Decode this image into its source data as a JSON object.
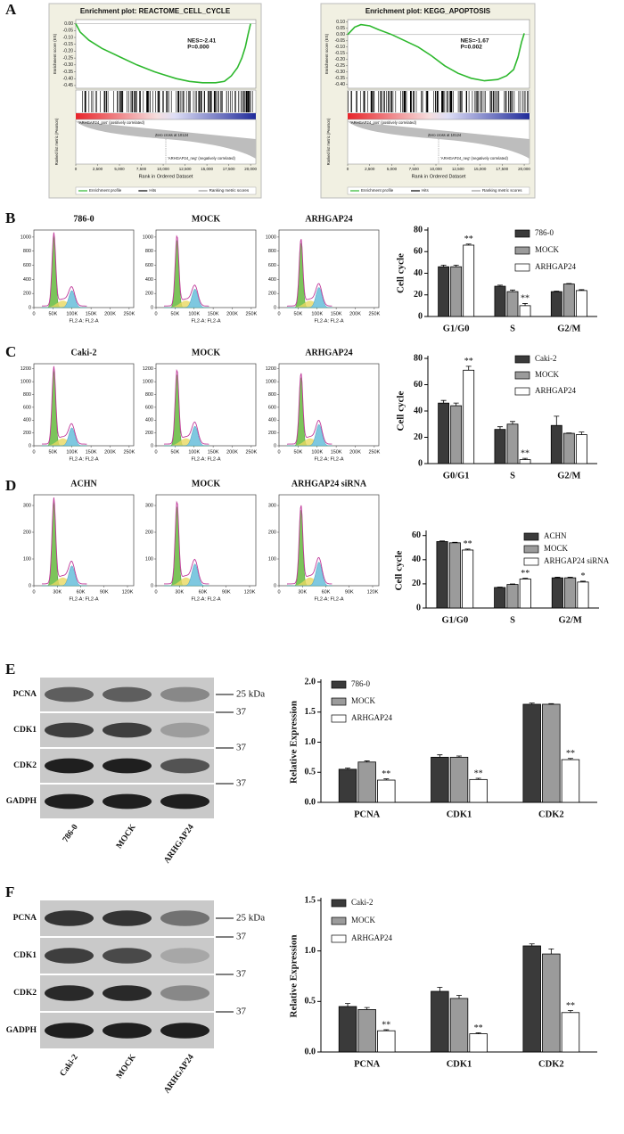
{
  "panels": [
    "A",
    "B",
    "C",
    "D",
    "E",
    "F"
  ],
  "chart_data": [
    {
      "type": "line",
      "title": "Enrichment plot: REACTOME_CELL_CYCLE",
      "annotations": [
        "NES=-2.41",
        "P=0.000"
      ],
      "x": [
        0,
        500,
        1500,
        3000,
        5000,
        7000,
        9000,
        10000,
        11500,
        13000,
        14500,
        16000,
        17000,
        17800,
        18500,
        19000,
        19400,
        19700,
        20000
      ],
      "values": [
        0,
        -0.06,
        -0.12,
        -0.18,
        -0.24,
        -0.3,
        -0.35,
        -0.37,
        -0.4,
        -0.42,
        -0.43,
        -0.43,
        -0.42,
        -0.38,
        -0.32,
        -0.25,
        -0.17,
        -0.08,
        0
      ],
      "color": "#2db82d",
      "xlim": [
        0,
        20600
      ],
      "ylim": [
        -0.47,
        0.03
      ],
      "xticks": [
        0,
        {
          "value": 2500,
          "label": "2,500"
        },
        {
          "value": 5000,
          "label": "5,000"
        },
        {
          "value": 7500,
          "label": "7,500"
        },
        {
          "value": 10000,
          "label": "10,000"
        },
        {
          "value": 12500,
          "label": "12,500"
        },
        {
          "value": 15000,
          "label": "15,000"
        },
        {
          "value": 17500,
          "label": "17,500"
        },
        {
          "value": 20000,
          "label": "20,000"
        }
      ],
      "yticks": [
        {
          "value": 0,
          "label": "0.00"
        },
        -0.05,
        {
          "value": -0.1,
          "label": "-0.10"
        },
        -0.15,
        {
          "value": -0.2,
          "label": "-0.20"
        },
        -0.25,
        {
          "value": -0.3,
          "label": "-0.30"
        },
        -0.35,
        {
          "value": -0.4,
          "label": "-0.40"
        },
        -0.45
      ],
      "ylabel": "Enrichment score (ES)",
      "ylabel2": "Ranked list metric (Pearson)",
      "xlabel": "Rank in Ordered Dataset",
      "pos_label": "'ARHGAP24_pos' (positively correlated)",
      "neg_label": "'ARHGAP24_neg' (negatively correlated)",
      "zero_cross": "Zero cross at 10124",
      "legend": [
        "Enrichment profile",
        "Hits",
        "Ranking metric scores"
      ]
    },
    {
      "type": "line",
      "title": "Enrichment plot: KEGG_APOPTOSIS",
      "annotations": [
        "NES=-1.67",
        "P=0.002"
      ],
      "x": [
        0,
        800,
        1500,
        2500,
        3500,
        5000,
        6500,
        8000,
        9500,
        11000,
        12500,
        14000,
        15500,
        17000,
        18000,
        18800,
        19300,
        19700,
        20000
      ],
      "values": [
        0,
        0.06,
        0.08,
        0.07,
        0.04,
        0,
        -0.05,
        -0.1,
        -0.17,
        -0.25,
        -0.31,
        -0.35,
        -0.37,
        -0.36,
        -0.33,
        -0.28,
        -0.18,
        -0.06,
        0.01
      ],
      "color": "#2db82d",
      "xlim": [
        0,
        20600
      ],
      "ylim": [
        -0.43,
        0.12
      ],
      "xticks": [
        0,
        {
          "value": 2500,
          "label": "2,500"
        },
        {
          "value": 5000,
          "label": "5,000"
        },
        {
          "value": 7500,
          "label": "7,500"
        },
        {
          "value": 10000,
          "label": "10,000"
        },
        {
          "value": 12500,
          "label": "12,500"
        },
        {
          "value": 15000,
          "label": "15,000"
        },
        {
          "value": 17500,
          "label": "17,500"
        },
        {
          "value": 20000,
          "label": "20,000"
        }
      ],
      "yticks": [
        {
          "value": 0.1,
          "label": "0.10"
        },
        0.05,
        {
          "value": 0,
          "label": "0.00"
        },
        -0.05,
        {
          "value": -0.1,
          "label": "-0.10"
        },
        -0.15,
        {
          "value": -0.2,
          "label": "-0.20"
        },
        -0.25,
        {
          "value": -0.3,
          "label": "-0.30"
        },
        -0.35,
        {
          "value": -0.4,
          "label": "-0.40"
        }
      ],
      "ylabel": "Enrichment score (ES)",
      "ylabel2": "Ranked list metric (Pearson)",
      "xlabel": "Rank in Ordered Dataset",
      "pos_label": "'ARHGAP24_pos' (positively correlated)",
      "neg_label": "'ARHGAP24_neg' (negatively correlated)",
      "zero_cross": "Zero cross at 10124",
      "legend": [
        "Enrichment profile",
        "Hits",
        "Ranking metric scores"
      ]
    },
    {
      "type": "flow",
      "titles": [
        "786-0",
        "MOCK",
        "ARHGAP24"
      ],
      "xlabel": "FL2-A: FL2-A",
      "xlim": [
        0,
        262000
      ],
      "ylim": [
        0,
        1100
      ],
      "yticks": [
        0,
        200,
        400,
        600,
        800,
        1000
      ],
      "xticks": [
        0,
        {
          "value": 50000,
          "label": "50K"
        },
        {
          "value": 100000,
          "label": "100K"
        },
        {
          "value": 150000,
          "label": "150K"
        },
        {
          "value": 200000,
          "label": "200K"
        },
        {
          "value": 250000,
          "label": "250K"
        }
      ]
    },
    {
      "type": "bar",
      "ylabel": "Cell cycle",
      "categories": [
        "G1/G0",
        "S",
        "G2/M"
      ],
      "ylim": [
        0,
        80
      ],
      "yticks": [
        0,
        20,
        40,
        60,
        80
      ],
      "series": [
        {
          "name": "786-0",
          "color": "#3a3a3a",
          "values": [
            46,
            28,
            23
          ],
          "errors": [
            1.5,
            1,
            0.5
          ]
        },
        {
          "name": "MOCK",
          "color": "#9b9b9b",
          "values": [
            46,
            23,
            30
          ],
          "errors": [
            1.5,
            1.5,
            0.5
          ]
        },
        {
          "name": "ARHGAP24",
          "color": "#ffffff",
          "values": [
            66,
            10,
            24
          ],
          "errors": [
            1,
            2,
            0.8
          ],
          "significance": [
            "**",
            "**",
            null
          ]
        }
      ]
    },
    {
      "type": "flow",
      "titles": [
        "Caki-2",
        "MOCK",
        "ARHGAP24"
      ],
      "xlabel": "FL2-A: FL2-A",
      "xlim": [
        0,
        262000
      ],
      "ylim": [
        0,
        1280
      ],
      "yticks": [
        0,
        200,
        400,
        600,
        800,
        1000,
        1200
      ],
      "xticks": [
        0,
        {
          "value": 50000,
          "label": "50K"
        },
        {
          "value": 100000,
          "label": "100K"
        },
        {
          "value": 150000,
          "label": "150K"
        },
        {
          "value": 200000,
          "label": "200K"
        },
        {
          "value": 250000,
          "label": "250K"
        }
      ]
    },
    {
      "type": "bar",
      "ylabel": "Cell cycle",
      "categories": [
        "G0/G1",
        "S",
        "G2/M"
      ],
      "ylim": [
        0,
        80
      ],
      "yticks": [
        0,
        20,
        40,
        60,
        80
      ],
      "series": [
        {
          "name": "Caki-2",
          "color": "#3a3a3a",
          "values": [
            46,
            26,
            29
          ],
          "errors": [
            2,
            2,
            7
          ]
        },
        {
          "name": "MOCK",
          "color": "#9b9b9b",
          "values": [
            44,
            30,
            23
          ],
          "errors": [
            2,
            2,
            0.3
          ]
        },
        {
          "name": "ARHGAP24",
          "color": "#ffffff",
          "values": [
            71,
            3,
            22
          ],
          "errors": [
            3,
            1,
            2
          ],
          "significance": [
            "**",
            "**",
            null
          ]
        }
      ]
    },
    {
      "type": "flow",
      "titles": [
        "ACHN",
        "MOCK",
        "ARHGAP24 siRNA"
      ],
      "xlabel": "FL2-A: FL2-A",
      "xlim": [
        0,
        128000
      ],
      "ylim": [
        0,
        340
      ],
      "yticks": [
        0,
        100,
        200,
        300
      ],
      "xticks": [
        0,
        {
          "value": 30000,
          "label": "30K"
        },
        {
          "value": 60000,
          "label": "60K"
        },
        {
          "value": 90000,
          "label": "90K"
        },
        {
          "value": 120000,
          "label": "120K"
        }
      ]
    },
    {
      "type": "bar",
      "ylabel": "Cell cycle",
      "categories": [
        "G1/G0",
        "S",
        "G2/M"
      ],
      "ylim": [
        0,
        62
      ],
      "yticks": [
        0,
        20,
        40,
        60
      ],
      "series": [
        {
          "name": "ACHN",
          "color": "#3a3a3a",
          "values": [
            55,
            17,
            25
          ],
          "errors": [
            0.5,
            0.3,
            0.5
          ]
        },
        {
          "name": "MOCK",
          "color": "#9b9b9b",
          "values": [
            54,
            19.5,
            25
          ],
          "errors": [
            0.4,
            0.4,
            0.5
          ]
        },
        {
          "name": "ARHGAP24 siRNA",
          "color": "#ffffff",
          "values": [
            48,
            24,
            21.5
          ],
          "errors": [
            0.8,
            0.6,
            0.7
          ],
          "significance": [
            "**",
            "**",
            "*"
          ]
        }
      ]
    },
    {
      "type": "blot",
      "rows": [
        "PCNA",
        "CDK1",
        "CDK2",
        "GADPH"
      ],
      "markers": [
        "25 kDa",
        "37",
        "37",
        "37"
      ],
      "lanes": [
        "786-0",
        "MOCK",
        "ARHGAP24"
      ]
    },
    {
      "type": "bar",
      "ylabel": "Relative Expression",
      "categories": [
        "PCNA",
        "CDK1",
        "CDK2"
      ],
      "ylim": [
        0,
        2
      ],
      "yticks": [
        {
          "value": 0,
          "label": "0.0"
        },
        0.5,
        {
          "value": 1,
          "label": "1.0"
        },
        1.5,
        {
          "value": 2,
          "label": "2.0"
        }
      ],
      "series": [
        {
          "name": "786-0",
          "color": "#3a3a3a",
          "values": [
            0.55,
            0.75,
            1.63
          ],
          "errors": [
            0.02,
            0.04,
            0.02
          ]
        },
        {
          "name": "MOCK",
          "color": "#9b9b9b",
          "values": [
            0.67,
            0.75,
            1.63
          ],
          "errors": [
            0.02,
            0.02,
            0.01
          ]
        },
        {
          "name": "ARHGAP24",
          "color": "#ffffff",
          "values": [
            0.37,
            0.38,
            0.71
          ],
          "errors": [
            0.02,
            0.02,
            0.02
          ],
          "significance": [
            "**",
            "**",
            "**"
          ]
        }
      ]
    },
    {
      "type": "blot",
      "rows": [
        "PCNA",
        "CDK1",
        "CDK2",
        "GADPH"
      ],
      "markers": [
        "25 kDa",
        "37",
        "37",
        "37"
      ],
      "lanes": [
        "Caki-2",
        "MOCK",
        "ARHGAP24"
      ]
    },
    {
      "type": "bar",
      "ylabel": "Relative Expression",
      "categories": [
        "PCNA",
        "CDK1",
        "CDK2"
      ],
      "ylim": [
        0,
        1.5
      ],
      "yticks": [
        {
          "value": 0,
          "label": "0.0"
        },
        0.5,
        {
          "value": 1,
          "label": "1.0"
        },
        1.5
      ],
      "series": [
        {
          "name": "Caki-2",
          "color": "#3a3a3a",
          "values": [
            0.45,
            0.6,
            1.05
          ],
          "errors": [
            0.03,
            0.04,
            0.02
          ]
        },
        {
          "name": "MOCK",
          "color": "#9b9b9b",
          "values": [
            0.42,
            0.53,
            0.97
          ],
          "errors": [
            0.02,
            0.03,
            0.05
          ]
        },
        {
          "name": "ARHGAP24",
          "color": "#ffffff",
          "values": [
            0.21,
            0.18,
            0.39
          ],
          "errors": [
            0.01,
            0.01,
            0.02
          ],
          "significance": [
            "**",
            "**",
            "**"
          ]
        }
      ]
    }
  ]
}
